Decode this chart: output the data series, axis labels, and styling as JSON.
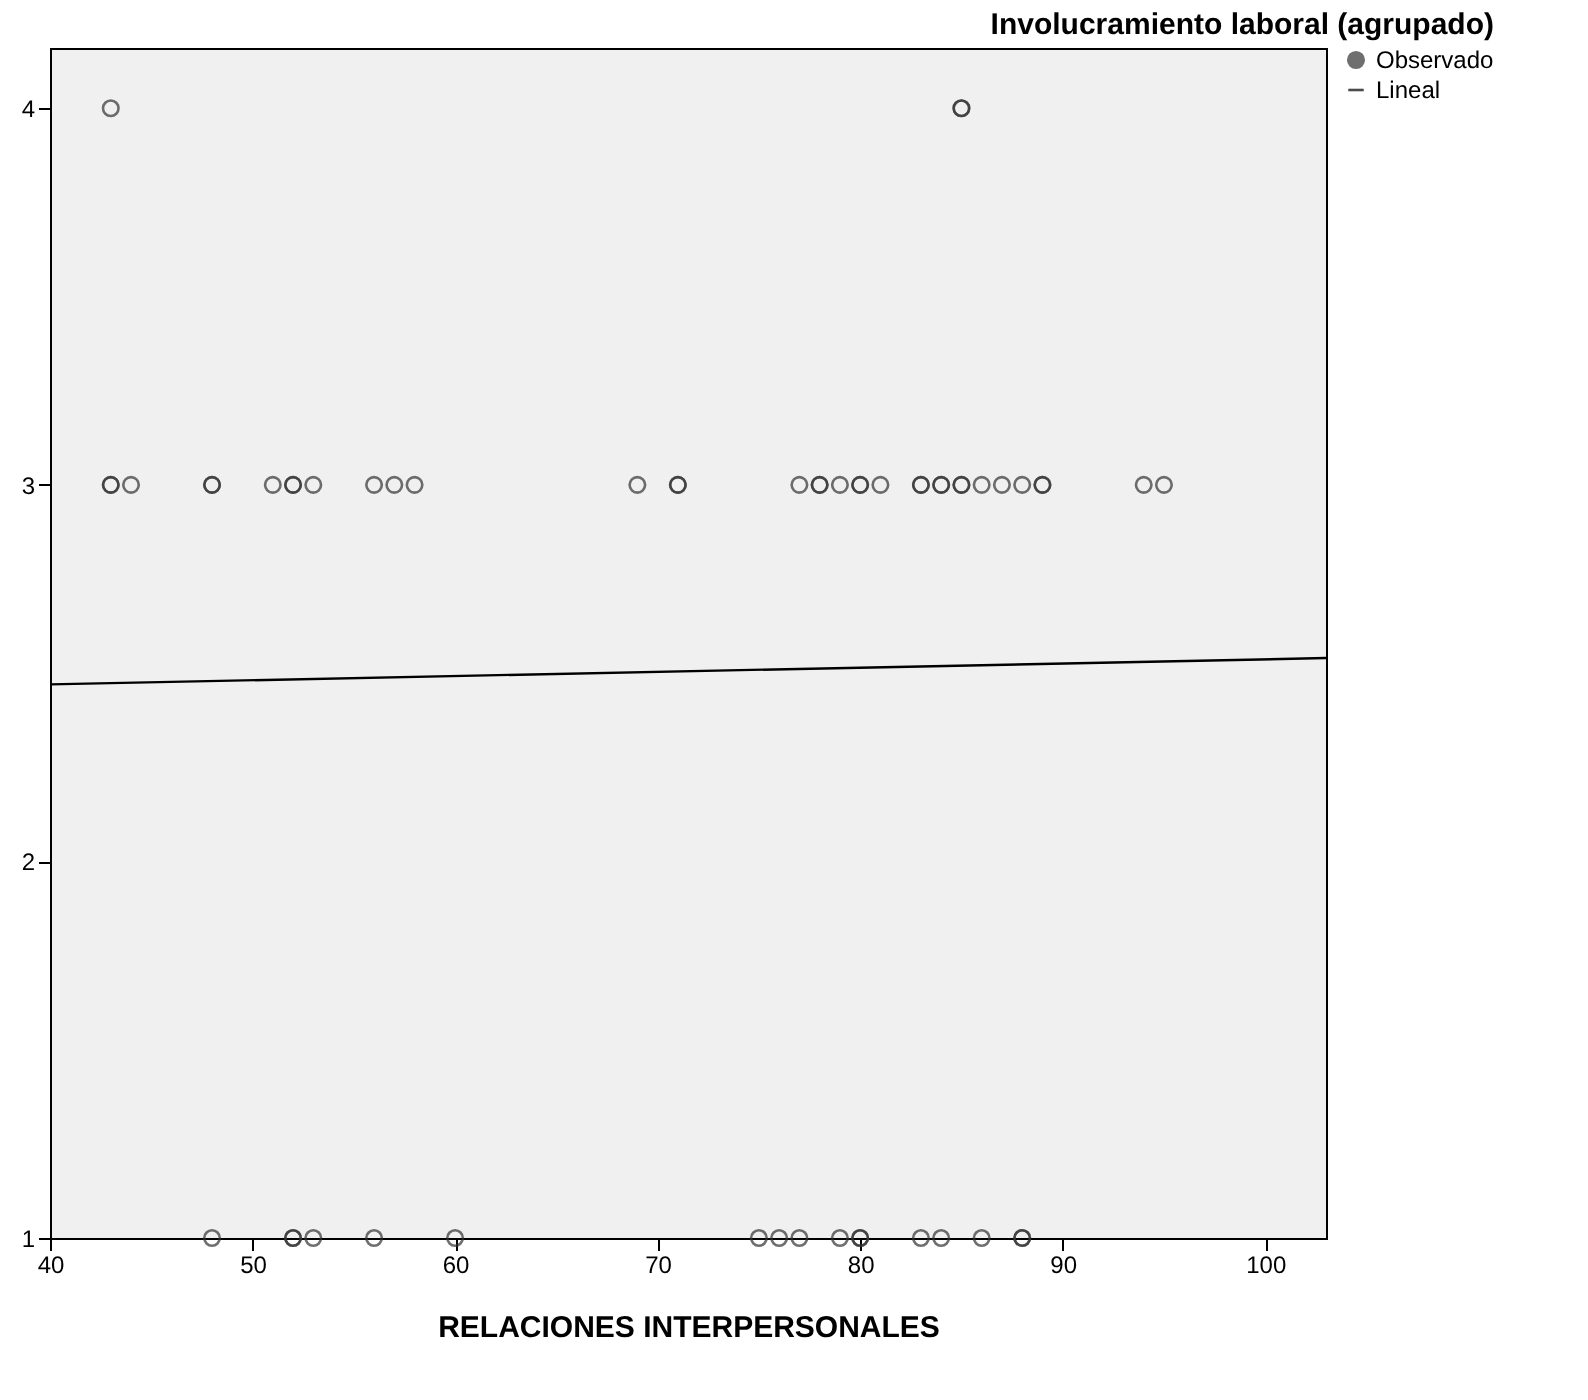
{
  "chart_data": {
    "type": "scatter",
    "title": "Involucramiento laboral (agrupado)",
    "xlabel": "RELACIONES INTERPERSONALES",
    "xlim": [
      40,
      103
    ],
    "xticks": [
      40,
      50,
      60,
      70,
      80,
      90,
      100
    ],
    "ylim": [
      1,
      4.16
    ],
    "yticks": [
      1,
      2,
      3,
      4
    ],
    "grid": false,
    "legend": "top right",
    "series": [
      {
        "name": "Observado",
        "marker": "circle",
        "color": "#333333",
        "x": [
          43,
          43,
          44,
          48,
          48,
          51,
          52,
          52,
          53,
          56,
          57,
          58,
          69,
          71,
          71,
          77,
          78,
          78,
          79,
          80,
          80,
          81,
          83,
          83,
          84,
          84,
          85,
          85,
          86,
          87,
          88,
          89,
          89,
          94,
          95,
          48,
          52,
          52,
          53,
          56,
          60,
          75,
          76,
          77,
          79,
          80,
          80,
          83,
          84,
          86,
          88,
          88,
          43,
          85,
          85
        ],
        "values": [
          3,
          3,
          3,
          3,
          3,
          3,
          3,
          3,
          3,
          3,
          3,
          3,
          3,
          3,
          3,
          3,
          3,
          3,
          3,
          3,
          3,
          3,
          3,
          3,
          3,
          3,
          3,
          3,
          3,
          3,
          3,
          3,
          3,
          3,
          3,
          1,
          1,
          1,
          1,
          1,
          1,
          1,
          1,
          1,
          1,
          1,
          1,
          1,
          1,
          1,
          1,
          1,
          4,
          4,
          4
        ]
      },
      {
        "name": "Lineal",
        "type": "line",
        "marker": "none",
        "color": "#000000",
        "x": [
          40,
          103
        ],
        "values": [
          2.47,
          2.54
        ]
      }
    ]
  }
}
